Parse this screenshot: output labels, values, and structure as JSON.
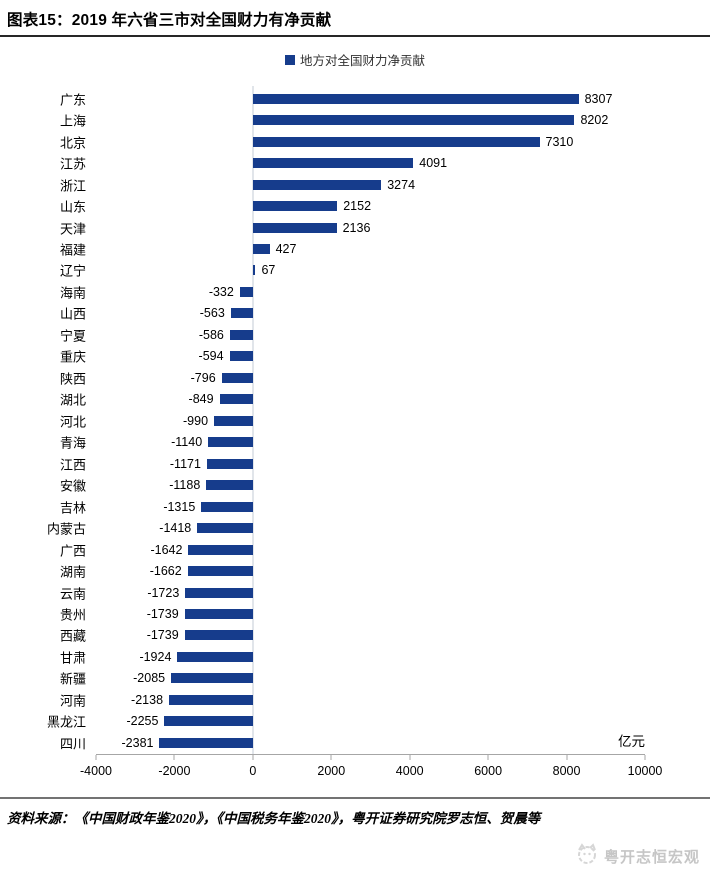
{
  "header": {
    "title": "图表15：2019 年六省三市对全国财力有净贡献"
  },
  "legend": {
    "label": "地方对全国财力净贡献"
  },
  "chart_data": {
    "type": "bar",
    "orientation": "horizontal",
    "title": "图表15：2019 年六省三市对全国财力有净贡献",
    "legend_entries": [
      "地方对全国财力净贡献"
    ],
    "legend_position": "top",
    "categories": [
      "广东",
      "上海",
      "北京",
      "江苏",
      "浙江",
      "山东",
      "天津",
      "福建",
      "辽宁",
      "海南",
      "山西",
      "宁夏",
      "重庆",
      "陕西",
      "湖北",
      "河北",
      "青海",
      "江西",
      "安徽",
      "吉林",
      "内蒙古",
      "广西",
      "湖南",
      "云南",
      "贵州",
      "西藏",
      "甘肃",
      "新疆",
      "河南",
      "黑龙江",
      "四川"
    ],
    "values": [
      8307,
      8202,
      7310,
      4091,
      3274,
      2152,
      2136,
      427,
      67,
      -332,
      -563,
      -586,
      -594,
      -796,
      -849,
      -990,
      -1140,
      -1171,
      -1188,
      -1315,
      -1418,
      -1642,
      -1662,
      -1723,
      -1739,
      -1739,
      -1924,
      -2085,
      -2138,
      -2255,
      -2381
    ],
    "xlim": [
      -4000,
      10000
    ],
    "xticks": [
      -4000,
      -2000,
      0,
      2000,
      4000,
      6000,
      8000,
      10000
    ],
    "unit_label": "亿元",
    "bar_color": "#163C8C",
    "grid": false,
    "data_labels": true
  },
  "colors": {
    "bar": "#163C8C",
    "axis_line": "#a6a6a6",
    "zero_line": "#c3cbd6",
    "brand_gray": "#c6c6c6"
  },
  "footer": {
    "source": "资料来源：《中国财政年鉴2020》，《中国税务年鉴2020》，粤开证券研究院罗志恒、贺晨等",
    "brand": "粤开志恒宏观"
  }
}
